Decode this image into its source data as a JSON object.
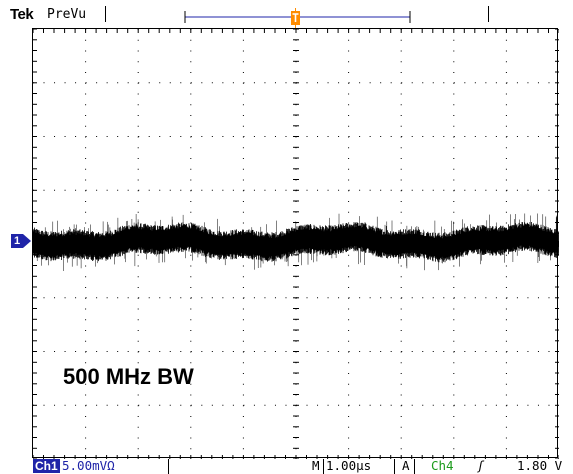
{
  "header": {
    "brand": "Tek",
    "mode": "PreVu"
  },
  "screen": {
    "annotation": "500 MHz BW"
  },
  "markers": {
    "channel_marker": "1",
    "trigger_marker": "T"
  },
  "status": {
    "channel_label": "Ch1",
    "channel_scale": "5.00mVΩ",
    "timebase_prefix": "M",
    "timebase": "1.00µs",
    "acquire_mode": "A",
    "trigger_source": "Ch4",
    "trigger_slope": "ʃ",
    "trigger_level": "1.80 V"
  },
  "colors": {
    "channel": "#1f24a8",
    "trigger_marker": "#ff8c00",
    "trigger_source": "#1a9a1a"
  }
}
